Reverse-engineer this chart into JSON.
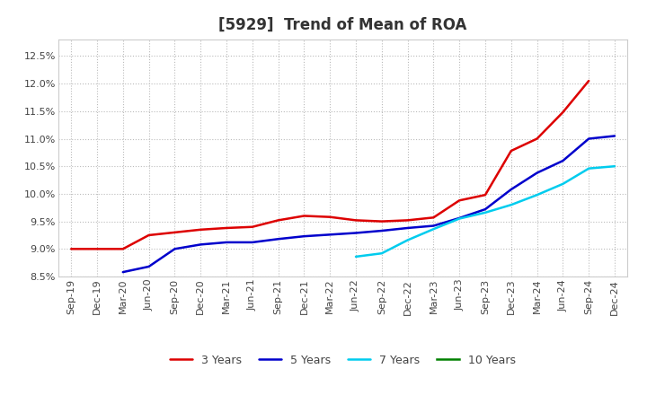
{
  "title": "[5929]  Trend of Mean of ROA",
  "ylim": [
    0.085,
    0.128
  ],
  "yticks": [
    0.085,
    0.09,
    0.095,
    0.1,
    0.105,
    0.11,
    0.115,
    0.12,
    0.125
  ],
  "x_labels": [
    "Sep-19",
    "Dec-19",
    "Mar-20",
    "Jun-20",
    "Sep-20",
    "Dec-20",
    "Mar-21",
    "Jun-21",
    "Sep-21",
    "Dec-21",
    "Mar-22",
    "Jun-22",
    "Sep-22",
    "Dec-22",
    "Mar-23",
    "Jun-23",
    "Sep-23",
    "Dec-23",
    "Mar-24",
    "Jun-24",
    "Sep-24",
    "Dec-24"
  ],
  "series_3y": {
    "label": "3 Years",
    "color": "#dd0000",
    "values": [
      0.09,
      0.09,
      0.09,
      0.0925,
      0.093,
      0.0935,
      0.0938,
      0.094,
      0.0952,
      0.096,
      0.0958,
      0.0952,
      0.095,
      0.0952,
      0.0957,
      0.0988,
      0.0998,
      0.1078,
      0.11,
      0.1148,
      0.1205,
      null
    ]
  },
  "series_5y": {
    "label": "5 Years",
    "color": "#0000cc",
    "values": [
      null,
      null,
      0.0858,
      0.0868,
      0.09,
      0.0908,
      0.0912,
      0.0912,
      0.0918,
      0.0923,
      0.0926,
      0.0929,
      0.0933,
      0.0938,
      0.0942,
      0.0956,
      0.0972,
      0.1008,
      0.1038,
      0.106,
      0.11,
      0.1105
    ]
  },
  "series_7y": {
    "label": "7 Years",
    "color": "#00ccee",
    "values": [
      null,
      null,
      null,
      null,
      null,
      null,
      null,
      null,
      null,
      null,
      null,
      0.0886,
      0.0892,
      0.0916,
      0.0936,
      0.0955,
      0.0966,
      0.098,
      0.0998,
      0.1018,
      0.1046,
      0.105
    ]
  },
  "series_10y": {
    "label": "10 Years",
    "color": "#008000",
    "values": [
      null,
      null,
      null,
      null,
      null,
      null,
      null,
      null,
      null,
      null,
      null,
      null,
      null,
      null,
      null,
      null,
      null,
      null,
      null,
      null,
      null,
      null
    ]
  },
  "background_color": "#ffffff",
  "plot_bg_color": "#ffffff",
  "grid_color": "#bbbbbb",
  "title_fontsize": 12,
  "tick_fontsize": 8,
  "legend_fontsize": 9
}
